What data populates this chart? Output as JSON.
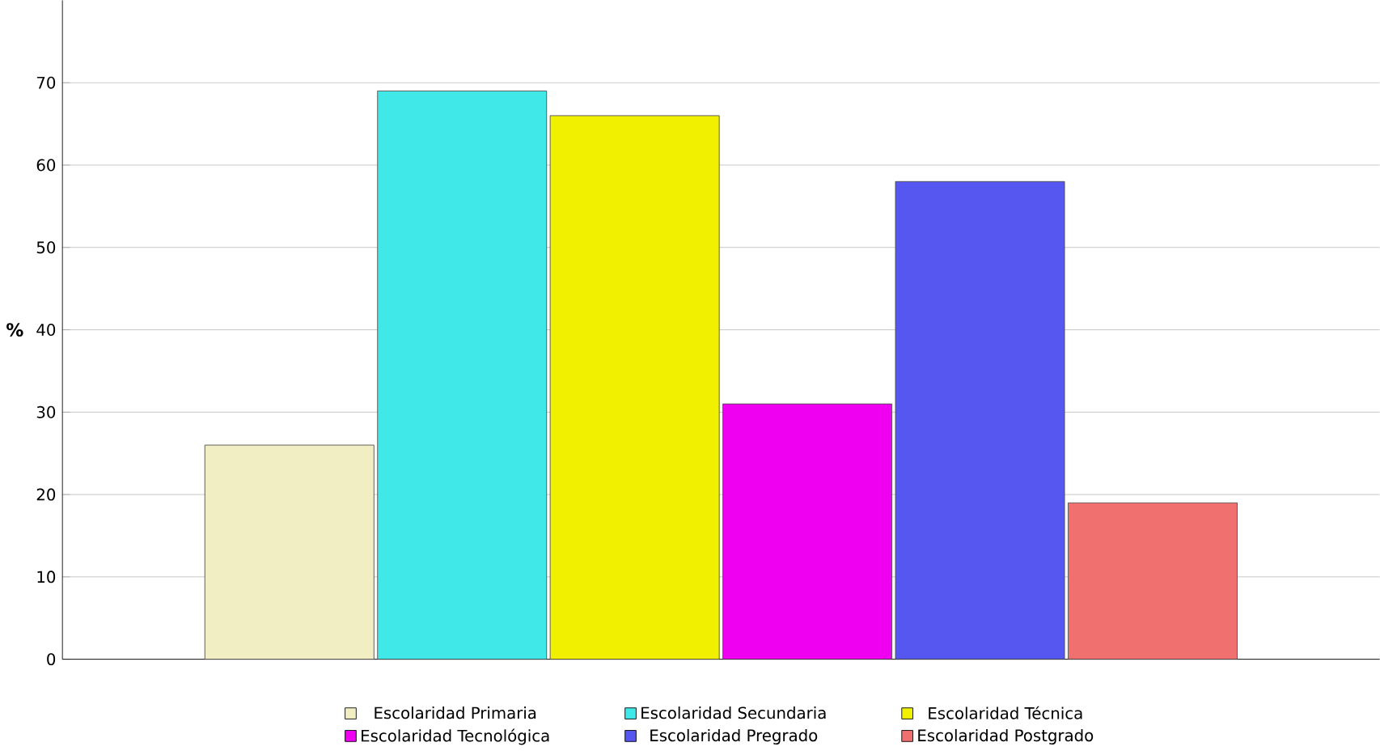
{
  "chart_data": {
    "type": "bar",
    "ylabel": "%",
    "categories": [
      null
    ],
    "series": [
      {
        "name": "Escolaridad Primaria",
        "color": "#f2eec4",
        "values": [
          26
        ]
      },
      {
        "name": "Escolaridad Secundaria",
        "color": "#40e8e8",
        "values": [
          69
        ]
      },
      {
        "name": "Escolaridad Técnica",
        "color": "#f0f000",
        "values": [
          66
        ]
      },
      {
        "name": "Escolaridad Tecnológica",
        "color": "#f000f0",
        "values": [
          31
        ]
      },
      {
        "name": "Escolaridad Pregrado",
        "color": "#5656f0",
        "values": [
          58
        ]
      },
      {
        "name": "Escolaridad Postgrado",
        "color": "#f07070",
        "values": [
          19
        ]
      }
    ],
    "ylim": [
      0,
      80
    ],
    "yticks": [
      0,
      10,
      20,
      30,
      40,
      50,
      60,
      70
    ],
    "grid": "y",
    "legend": "bottom"
  }
}
